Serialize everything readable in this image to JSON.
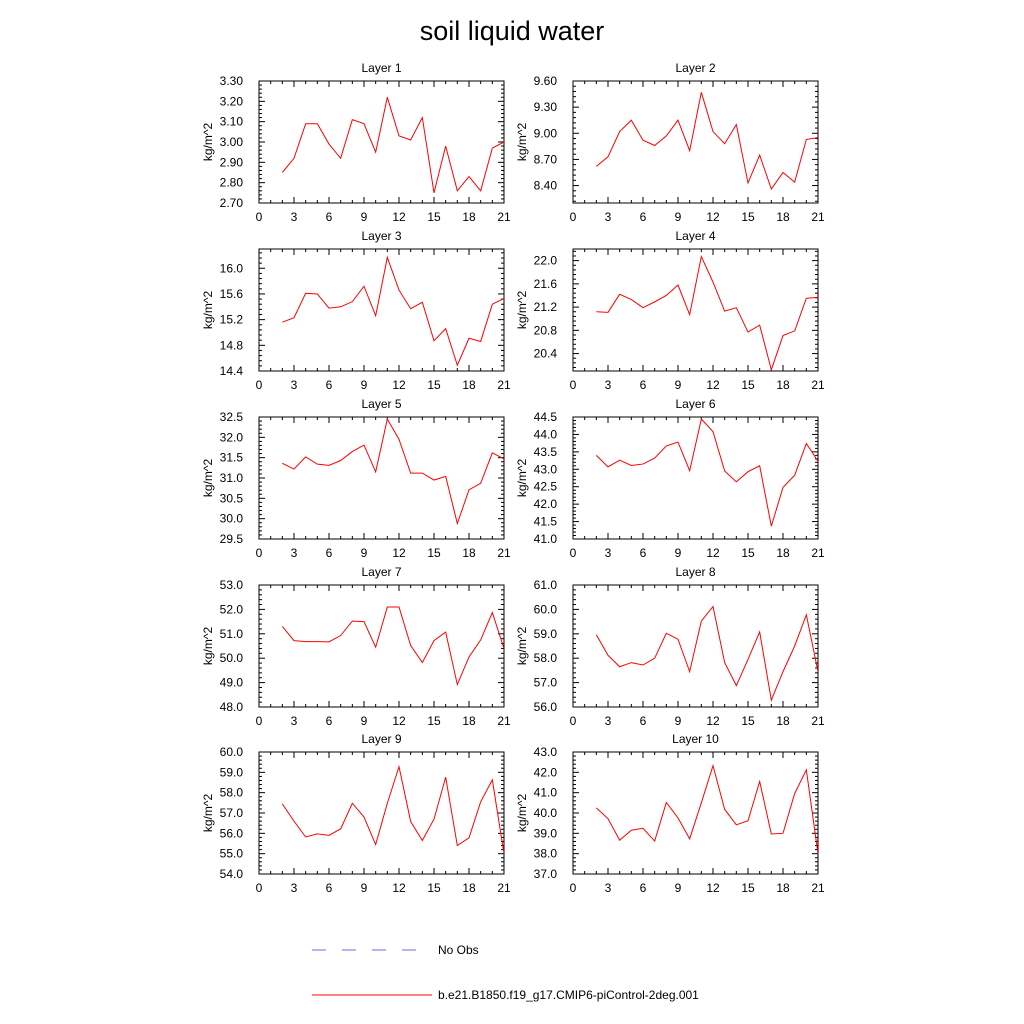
{
  "chart_data": {
    "title": "soil liquid water",
    "type": "line",
    "legend": {
      "position": "bottom",
      "entries": [
        {
          "name": "No Obs",
          "color": "#6b6bd9",
          "style": "dashed"
        },
        {
          "name": "b.e21.B1850.f19_g17.CMIP6-piControl-2deg.001",
          "color": "#ff0000",
          "style": "solid"
        }
      ]
    },
    "panels": [
      {
        "title": "Layer 1",
        "ylabel": "kg/m^2",
        "xlim": [
          0,
          21
        ],
        "xticks": [
          0,
          3,
          6,
          9,
          12,
          15,
          18,
          21
        ],
        "ylim": [
          2.7,
          3.3
        ],
        "yticks": [
          "2.70",
          "2.80",
          "2.90",
          "3.00",
          "3.10",
          "3.20",
          "3.30"
        ],
        "series": [
          {
            "color": "#ff0000",
            "x": [
              2,
              3,
              4,
              5,
              6,
              7,
              8,
              9,
              10,
              11,
              12,
              13,
              14,
              15,
              16,
              17,
              18,
              19,
              20,
              21
            ],
            "y": [
              2.85,
              2.92,
              3.09,
              3.09,
              2.99,
              2.92,
              3.11,
              3.09,
              2.95,
              3.22,
              3.03,
              3.01,
              3.12,
              2.75,
              2.98,
              2.76,
              2.83,
              2.76,
              2.97,
              3.0
            ]
          }
        ]
      },
      {
        "title": "Layer 2",
        "ylabel": "kg/m^2",
        "xlim": [
          0,
          21
        ],
        "xticks": [
          0,
          3,
          6,
          9,
          12,
          15,
          18,
          21
        ],
        "ylim": [
          8.2,
          9.6
        ],
        "yticks": [
          "8.40",
          "8.70",
          "9.00",
          "9.30",
          "9.60"
        ],
        "series": [
          {
            "color": "#ff0000",
            "x": [
              2,
              3,
              4,
              5,
              6,
              7,
              8,
              9,
              10,
              11,
              12,
              13,
              14,
              15,
              16,
              17,
              18,
              19,
              20,
              21
            ],
            "y": [
              8.62,
              8.73,
              9.02,
              9.15,
              8.92,
              8.86,
              8.97,
              9.15,
              8.8,
              9.47,
              9.02,
              8.88,
              9.1,
              8.43,
              8.75,
              8.36,
              8.55,
              8.44,
              8.93,
              8.95
            ]
          }
        ]
      },
      {
        "title": "Layer 3",
        "ylabel": "kg/m^2",
        "xlim": [
          0,
          21
        ],
        "xticks": [
          0,
          3,
          6,
          9,
          12,
          15,
          18,
          21
        ],
        "ylim": [
          14.4,
          16.3
        ],
        "yticks": [
          "14.4",
          "14.8",
          "15.2",
          "15.6",
          "16.0"
        ],
        "series": [
          {
            "color": "#ff0000",
            "x": [
              2,
              3,
              4,
              5,
              6,
              7,
              8,
              9,
              10,
              11,
              12,
              13,
              14,
              15,
              16,
              17,
              18,
              19,
              20,
              21
            ],
            "y": [
              15.16,
              15.23,
              15.61,
              15.6,
              15.38,
              15.4,
              15.48,
              15.72,
              15.26,
              16.17,
              15.66,
              15.37,
              15.47,
              14.87,
              15.06,
              14.49,
              14.91,
              14.86,
              15.44,
              15.53
            ]
          }
        ]
      },
      {
        "title": "Layer 4",
        "ylabel": "kg/m^2",
        "xlim": [
          0,
          21
        ],
        "xticks": [
          0,
          3,
          6,
          9,
          12,
          15,
          18,
          21
        ],
        "ylim": [
          20.1,
          22.2
        ],
        "yticks": [
          "20.4",
          "20.8",
          "21.2",
          "21.6",
          "22.0"
        ],
        "series": [
          {
            "color": "#ff0000",
            "x": [
              2,
              3,
              4,
              5,
              6,
              7,
              8,
              9,
              10,
              11,
              12,
              13,
              14,
              15,
              16,
              17,
              18,
              19,
              20,
              21
            ],
            "y": [
              21.12,
              21.11,
              21.42,
              21.33,
              21.19,
              21.29,
              21.4,
              21.58,
              21.07,
              22.07,
              21.63,
              21.13,
              21.19,
              20.77,
              20.89,
              20.12,
              20.71,
              20.79,
              21.35,
              21.37
            ]
          }
        ]
      },
      {
        "title": "Layer 5",
        "ylabel": "kg/m^2",
        "xlim": [
          0,
          21
        ],
        "xticks": [
          0,
          3,
          6,
          9,
          12,
          15,
          18,
          21
        ],
        "ylim": [
          29.5,
          32.5
        ],
        "yticks": [
          "29.5",
          "30.0",
          "30.5",
          "31.0",
          "31.5",
          "32.0",
          "32.5"
        ],
        "series": [
          {
            "color": "#ff0000",
            "x": [
              2,
              3,
              4,
              5,
              6,
              7,
              8,
              9,
              10,
              11,
              12,
              13,
              14,
              15,
              16,
              17,
              18,
              19,
              20,
              21
            ],
            "y": [
              31.36,
              31.22,
              31.52,
              31.34,
              31.31,
              31.43,
              31.65,
              31.81,
              31.15,
              32.45,
              31.95,
              31.12,
              31.12,
              30.95,
              31.04,
              29.88,
              30.71,
              30.87,
              31.62,
              31.47
            ]
          }
        ]
      },
      {
        "title": "Layer 6",
        "ylabel": "kg/m^2",
        "xlim": [
          0,
          21
        ],
        "xticks": [
          0,
          3,
          6,
          9,
          12,
          15,
          18,
          21
        ],
        "ylim": [
          41.0,
          44.5
        ],
        "yticks": [
          "41.0",
          "41.5",
          "42.0",
          "42.5",
          "43.0",
          "43.5",
          "44.0",
          "44.5"
        ],
        "series": [
          {
            "color": "#ff0000",
            "x": [
              2,
              3,
              4,
              5,
              6,
              7,
              8,
              9,
              10,
              11,
              12,
              13,
              14,
              15,
              16,
              17,
              18,
              19,
              20,
              21
            ],
            "y": [
              43.4,
              43.07,
              43.26,
              43.11,
              43.15,
              43.32,
              43.67,
              43.78,
              42.96,
              44.44,
              44.08,
              42.95,
              42.64,
              42.93,
              43.1,
              41.37,
              42.48,
              42.83,
              43.74,
              43.23
            ]
          }
        ]
      },
      {
        "title": "Layer 7",
        "ylabel": "kg/m^2",
        "xlim": [
          0,
          21
        ],
        "xticks": [
          0,
          3,
          6,
          9,
          12,
          15,
          18,
          21
        ],
        "ylim": [
          48.0,
          53.0
        ],
        "yticks": [
          "48.0",
          "49.0",
          "50.0",
          "51.0",
          "52.0",
          "53.0"
        ],
        "series": [
          {
            "color": "#ff0000",
            "x": [
              2,
              3,
              4,
              5,
              6,
              7,
              8,
              9,
              10,
              11,
              12,
              13,
              14,
              15,
              16,
              17,
              18,
              19,
              20,
              21
            ],
            "y": [
              51.3,
              50.72,
              50.68,
              50.68,
              50.67,
              50.93,
              51.52,
              51.5,
              50.45,
              52.1,
              52.1,
              50.52,
              49.82,
              50.72,
              51.07,
              48.92,
              50.05,
              50.75,
              51.87,
              50.4
            ]
          }
        ]
      },
      {
        "title": "Layer 8",
        "ylabel": "kg/m^2",
        "xlim": [
          0,
          21
        ],
        "xticks": [
          0,
          3,
          6,
          9,
          12,
          15,
          18,
          21
        ],
        "ylim": [
          56.0,
          61.0
        ],
        "yticks": [
          "56.0",
          "57.0",
          "58.0",
          "59.0",
          "60.0",
          "61.0"
        ],
        "series": [
          {
            "color": "#ff0000",
            "x": [
              2,
              3,
              4,
              5,
              6,
              7,
              8,
              9,
              10,
              11,
              12,
              13,
              14,
              15,
              16,
              17,
              18,
              19,
              20,
              21
            ],
            "y": [
              58.96,
              58.12,
              57.65,
              57.82,
              57.72,
              58.0,
              59.02,
              58.78,
              57.45,
              59.52,
              60.12,
              57.82,
              56.88,
              57.95,
              59.08,
              56.28,
              57.45,
              58.5,
              59.78,
              57.45
            ]
          }
        ]
      },
      {
        "title": "Layer 9",
        "ylabel": "kg/m^2",
        "xlim": [
          0,
          21
        ],
        "xticks": [
          0,
          3,
          6,
          9,
          12,
          15,
          18,
          21
        ],
        "ylim": [
          54.0,
          60.0
        ],
        "yticks": [
          "54.0",
          "55.0",
          "56.0",
          "57.0",
          "58.0",
          "59.0",
          "60.0"
        ],
        "series": [
          {
            "color": "#ff0000",
            "x": [
              2,
              3,
              4,
              5,
              6,
              7,
              8,
              9,
              10,
              11,
              12,
              13,
              14,
              15,
              16,
              17,
              18,
              19,
              20,
              21
            ],
            "y": [
              57.45,
              56.6,
              55.82,
              55.97,
              55.9,
              56.22,
              57.48,
              56.8,
              55.45,
              57.48,
              59.28,
              56.58,
              55.65,
              56.7,
              58.76,
              55.4,
              55.78,
              57.55,
              58.63,
              55.0
            ]
          }
        ]
      },
      {
        "title": "Layer 10",
        "ylabel": "kg/m^2",
        "xlim": [
          0,
          21
        ],
        "xticks": [
          0,
          3,
          6,
          9,
          12,
          15,
          18,
          21
        ],
        "ylim": [
          37.0,
          43.0
        ],
        "yticks": [
          "37.0",
          "38.0",
          "39.0",
          "40.0",
          "41.0",
          "42.0",
          "43.0"
        ],
        "series": [
          {
            "color": "#ff0000",
            "x": [
              2,
              3,
              4,
              5,
              6,
              7,
              8,
              9,
              10,
              11,
              12,
              13,
              14,
              15,
              16,
              17,
              18,
              19,
              20,
              21
            ],
            "y": [
              40.25,
              39.72,
              38.66,
              39.15,
              39.25,
              38.62,
              40.52,
              39.76,
              38.73,
              40.5,
              42.33,
              40.18,
              39.42,
              39.62,
              41.55,
              38.97,
              39.0,
              40.96,
              42.12,
              38.0
            ]
          }
        ]
      }
    ]
  }
}
